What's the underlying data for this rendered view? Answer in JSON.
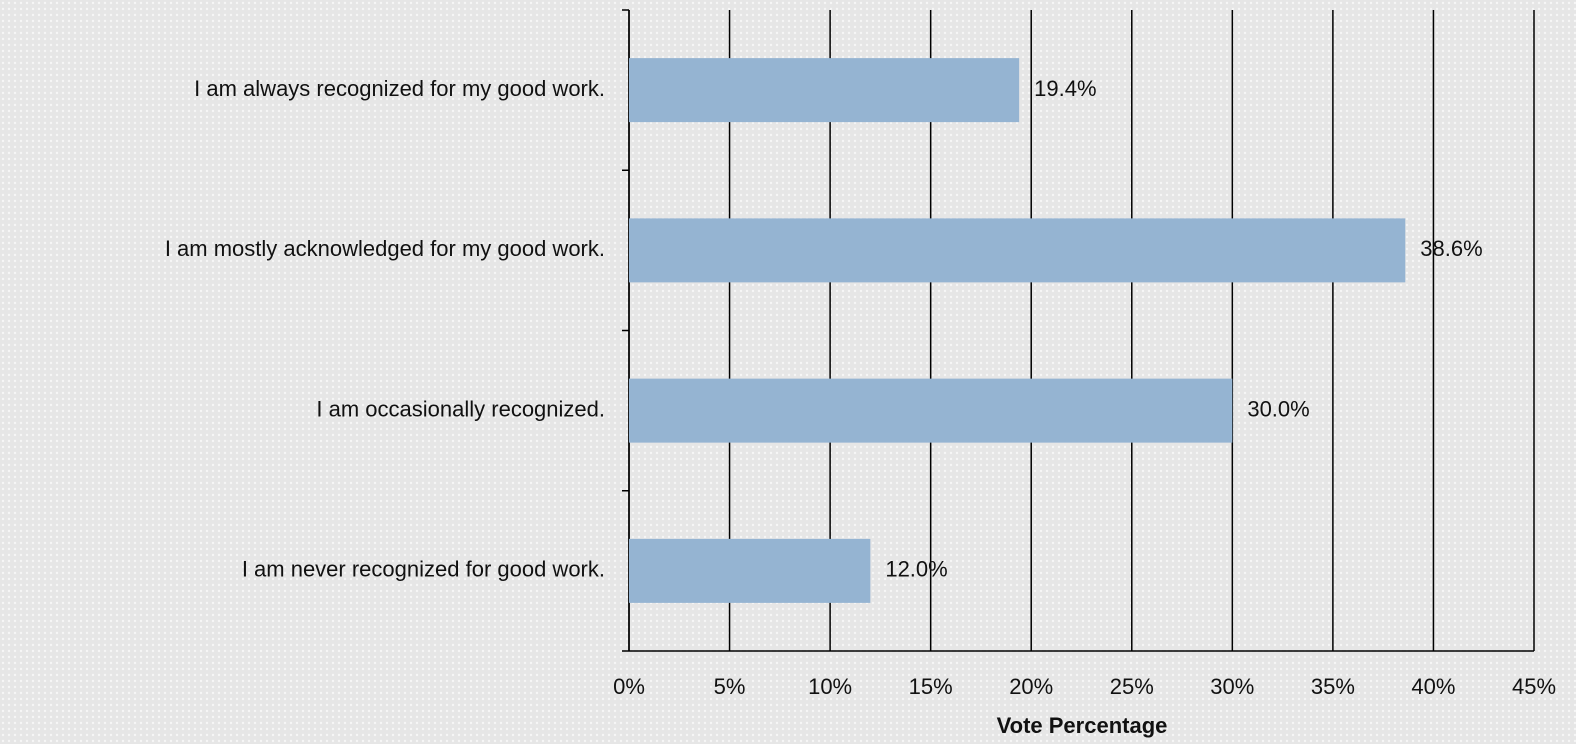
{
  "chart_data": {
    "type": "bar",
    "orientation": "horizontal",
    "categories": [
      "I am always recognized for my good work.",
      "I am mostly acknowledged for my good work.",
      "I am occasionally recognized.",
      "I am never recognized for good work."
    ],
    "values": [
      19.4,
      38.6,
      30.0,
      12.0
    ],
    "value_labels": [
      "19.4%",
      "38.6%",
      "30.0%",
      "12.0%"
    ],
    "color": "#95b4d2",
    "xlabel": "Vote Percentage",
    "xlim": [
      0,
      45
    ],
    "xticks": [
      {
        "value": 0,
        "label": "0%"
      },
      {
        "value": 5,
        "label": "5%"
      },
      {
        "value": 10,
        "label": "10%"
      },
      {
        "value": 15,
        "label": "15%"
      },
      {
        "value": 20,
        "label": "20%"
      },
      {
        "value": 25,
        "label": "25%"
      },
      {
        "value": 30,
        "label": "30%"
      },
      {
        "value": 35,
        "label": "35%"
      },
      {
        "value": 40,
        "label": "40%"
      },
      {
        "value": 45,
        "label": "45%"
      }
    ],
    "grid": true
  }
}
